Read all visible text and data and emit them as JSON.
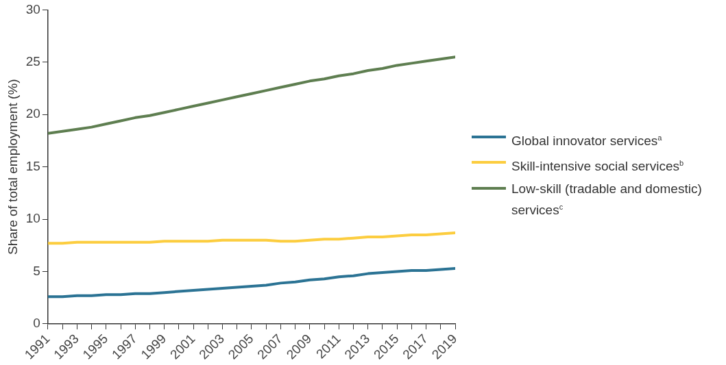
{
  "chart_data": {
    "type": "line",
    "ylabel": "Share of total employment (%)",
    "x": [
      1991,
      1992,
      1993,
      1994,
      1995,
      1996,
      1997,
      1998,
      1999,
      2000,
      2001,
      2002,
      2003,
      2004,
      2005,
      2006,
      2007,
      2008,
      2009,
      2010,
      2011,
      2012,
      2013,
      2014,
      2015,
      2016,
      2017,
      2018,
      2019
    ],
    "series": [
      {
        "name": "Global innovator services$^{a}$",
        "color": "#2b7394",
        "values": [
          2.6,
          2.6,
          2.7,
          2.7,
          2.8,
          2.8,
          2.9,
          2.9,
          3.0,
          3.1,
          3.2,
          3.3,
          3.4,
          3.5,
          3.6,
          3.7,
          3.9,
          4.0,
          4.2,
          4.3,
          4.5,
          4.6,
          4.8,
          4.9,
          5.0,
          5.1,
          5.1,
          5.2,
          5.3
        ]
      },
      {
        "name": "Skill-intensive social services$^{b}$",
        "color": "#fccd3f",
        "values": [
          7.7,
          7.7,
          7.8,
          7.8,
          7.8,
          7.8,
          7.8,
          7.8,
          7.9,
          7.9,
          7.9,
          7.9,
          8.0,
          8.0,
          8.0,
          8.0,
          7.9,
          7.9,
          8.0,
          8.1,
          8.1,
          8.2,
          8.3,
          8.3,
          8.4,
          8.5,
          8.5,
          8.6,
          8.7
        ]
      },
      {
        "name": "Low-skill (tradable and domestic) services$^{c}$",
        "color": "#5e7e50",
        "values": [
          18.2,
          18.4,
          18.6,
          18.8,
          19.1,
          19.4,
          19.7,
          19.9,
          20.2,
          20.5,
          20.8,
          21.1,
          21.4,
          21.7,
          22.0,
          22.3,
          22.6,
          22.9,
          23.2,
          23.4,
          23.7,
          23.9,
          24.2,
          24.4,
          24.7,
          24.9,
          25.1,
          25.3,
          25.5
        ]
      }
    ],
    "xlim": [
      1991,
      2019
    ],
    "xticks": [
      1991,
      {
        "value": 1992,
        "label": null
      },
      1993,
      {
        "value": 1994,
        "label": null
      },
      1995,
      {
        "value": 1996,
        "label": null
      },
      1997,
      {
        "value": 1998,
        "label": null
      },
      1999,
      {
        "value": 2000,
        "label": null
      },
      2001,
      {
        "value": 2002,
        "label": null
      },
      2003,
      {
        "value": 2004,
        "label": null
      },
      2005,
      {
        "value": 2006,
        "label": null
      },
      2007,
      {
        "value": 2008,
        "label": null
      },
      2009,
      {
        "value": 2010,
        "label": null
      },
      2011,
      {
        "value": 2012,
        "label": null
      },
      2013,
      {
        "value": 2014,
        "label": null
      },
      2015,
      {
        "value": 2016,
        "label": null
      },
      2017,
      {
        "value": 2018,
        "label": null
      },
      2019
    ],
    "ylim": [
      0,
      30
    ],
    "yticks": [
      0,
      5,
      10,
      15,
      20,
      25,
      30
    ],
    "grid": false,
    "legend": "right",
    "marker": "none",
    "line_style": "solid"
  }
}
